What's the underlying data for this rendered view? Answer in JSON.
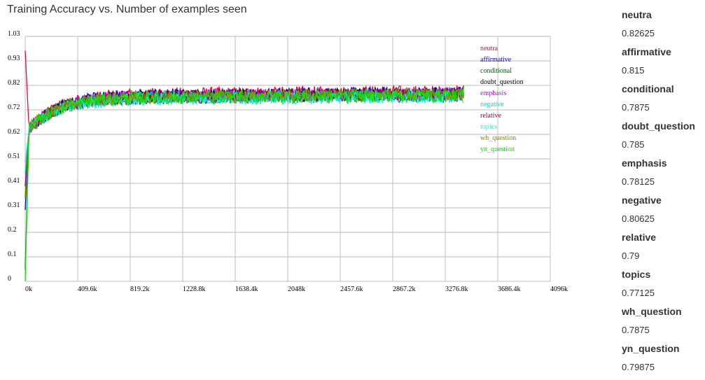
{
  "chart_data": {
    "type": "line",
    "title": "Training Accuracy vs. Number of examples seen",
    "xlabel": "",
    "ylabel": "",
    "x_ticks": [
      "0k",
      "409.6k",
      "819.2k",
      "1228.8k",
      "1638.4k",
      "2048k",
      "2457.6k",
      "2867.2k",
      "3276.8k",
      "3686.4k",
      "4096k"
    ],
    "y_ticks": [
      "0",
      "0.1",
      "0.2",
      "0.31",
      "0.41",
      "0.51",
      "0.62",
      "0.72",
      "0.82",
      "0.93",
      "1.03"
    ],
    "xlim": [
      0,
      4096
    ],
    "ylim": [
      0,
      1.03
    ],
    "x_unit": "k",
    "grid": true,
    "legend_position": "top-right",
    "series": [
      {
        "name": "neutra",
        "color": "#dd1133",
        "final": 0.82625,
        "start": 0.97,
        "plateau": 0.785
      },
      {
        "name": "affirmative",
        "color": "#0000ee",
        "final": 0.815,
        "start": 0.3,
        "plateau": 0.78
      },
      {
        "name": "conditional",
        "color": "#006600",
        "final": 0.7875,
        "start": 0.05,
        "plateau": 0.77
      },
      {
        "name": "doubt_question",
        "color": "#000000",
        "final": 0.785,
        "start": 0.35,
        "plateau": 0.775
      },
      {
        "name": "emphasis",
        "color": "#dd00dd",
        "final": 0.78125,
        "start": 0.4,
        "plateau": 0.775
      },
      {
        "name": "negative",
        "color": "#00dddd",
        "final": 0.80625,
        "start": 0.45,
        "plateau": 0.77
      },
      {
        "name": "relative",
        "color": "#880066",
        "final": 0.79,
        "start": 0.4,
        "plateau": 0.775
      },
      {
        "name": "topics",
        "color": "#22eeee",
        "final": 0.77125,
        "start": 0.5,
        "plateau": 0.765
      },
      {
        "name": "wh_question",
        "color": "#888800",
        "final": 0.7875,
        "start": 0.35,
        "plateau": 0.775
      },
      {
        "name": "yn_question",
        "color": "#11dd11",
        "final": 0.79875,
        "start": 0.0,
        "plateau": 0.77
      }
    ]
  },
  "sidebar": [
    {
      "name": "neutra",
      "value": "0.82625"
    },
    {
      "name": "affirmative",
      "value": "0.815"
    },
    {
      "name": "conditional",
      "value": "0.7875"
    },
    {
      "name": "doubt_question",
      "value": "0.785"
    },
    {
      "name": "emphasis",
      "value": "0.78125"
    },
    {
      "name": "negative",
      "value": "0.80625"
    },
    {
      "name": "relative",
      "value": "0.79"
    },
    {
      "name": "topics",
      "value": "0.77125"
    },
    {
      "name": "wh_question",
      "value": "0.7875"
    },
    {
      "name": "yn_question",
      "value": "0.79875"
    }
  ]
}
